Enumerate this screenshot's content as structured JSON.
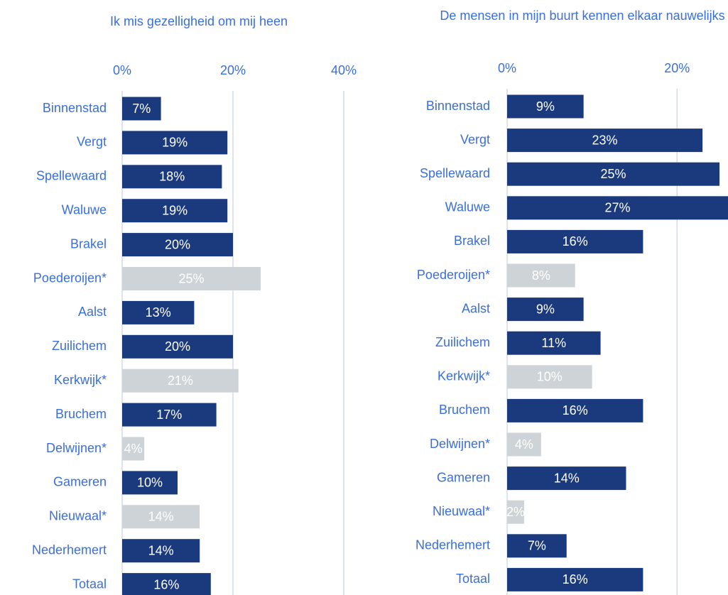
{
  "chart_data": [
    {
      "type": "barh",
      "title": "Ik mis gezelligheid om mij heen",
      "categories": [
        "Binnenstad",
        "Vergt",
        "Spellewaard",
        "Waluwe",
        "Brakel",
        "Poederoijen*",
        "Aalst",
        "Zuilichem",
        "Kerkwijk*",
        "Bruchem",
        "Delwijnen*",
        "Gameren",
        "Nieuwaal*",
        "Nederhemert",
        "Totaal"
      ],
      "values": [
        7,
        19,
        18,
        19,
        20,
        25,
        13,
        20,
        21,
        17,
        4,
        10,
        14,
        14,
        16
      ],
      "value_labels": [
        "7%",
        "19%",
        "18%",
        "19%",
        "20%",
        "25%",
        "13%",
        "20%",
        "21%",
        "17%",
        "4%",
        "10%",
        "14%",
        "14%",
        "16%"
      ],
      "colors": [
        "#1b3a7e",
        "#1b3a7e",
        "#1b3a7e",
        "#1b3a7e",
        "#1b3a7e",
        "#cdd3d6",
        "#1b3a7e",
        "#1b3a7e",
        "#cdd3d6",
        "#1b3a7e",
        "#cdd3d6",
        "#1b3a7e",
        "#cdd3d6",
        "#1b3a7e",
        "#1b3a7e"
      ],
      "xlim": [
        0,
        40
      ],
      "xticks": [
        {
          "value": 0,
          "label": "0%"
        },
        {
          "value": 20,
          "label": "20%"
        },
        {
          "value": 40,
          "label": "40%"
        }
      ],
      "grid": true
    },
    {
      "type": "barh",
      "title": "De mensen in mijn buurt kennen elkaar nauwelijks",
      "categories": [
        "Binnenstad",
        "Vergt",
        "Spellewaard",
        "Waluwe",
        "Brakel",
        "Poederoijen*",
        "Aalst",
        "Zuilichem",
        "Kerkwijk*",
        "Bruchem",
        "Delwijnen*",
        "Gameren",
        "Nieuwaal*",
        "Nederhemert",
        "Totaal"
      ],
      "values": [
        9,
        23,
        25,
        27,
        16,
        8,
        9,
        11,
        10,
        16,
        4,
        14,
        2,
        7,
        16
      ],
      "value_labels": [
        "9%",
        "23%",
        "25%",
        "27%",
        "16%",
        "8%",
        "9%",
        "11%",
        "10%",
        "16%",
        "4%",
        "14%",
        "2%",
        "7%",
        "16%"
      ],
      "colors": [
        "#1b3a7e",
        "#1b3a7e",
        "#1b3a7e",
        "#1b3a7e",
        "#1b3a7e",
        "#cdd3d6",
        "#1b3a7e",
        "#1b3a7e",
        "#cdd3d6",
        "#1b3a7e",
        "#cdd3d6",
        "#1b3a7e",
        "#cdd3d6",
        "#1b3a7e",
        "#1b3a7e"
      ],
      "xlim": [
        0,
        26
      ],
      "xticks": [
        {
          "value": 0,
          "label": "0%"
        },
        {
          "value": 20,
          "label": "20%"
        }
      ],
      "grid": true
    }
  ]
}
